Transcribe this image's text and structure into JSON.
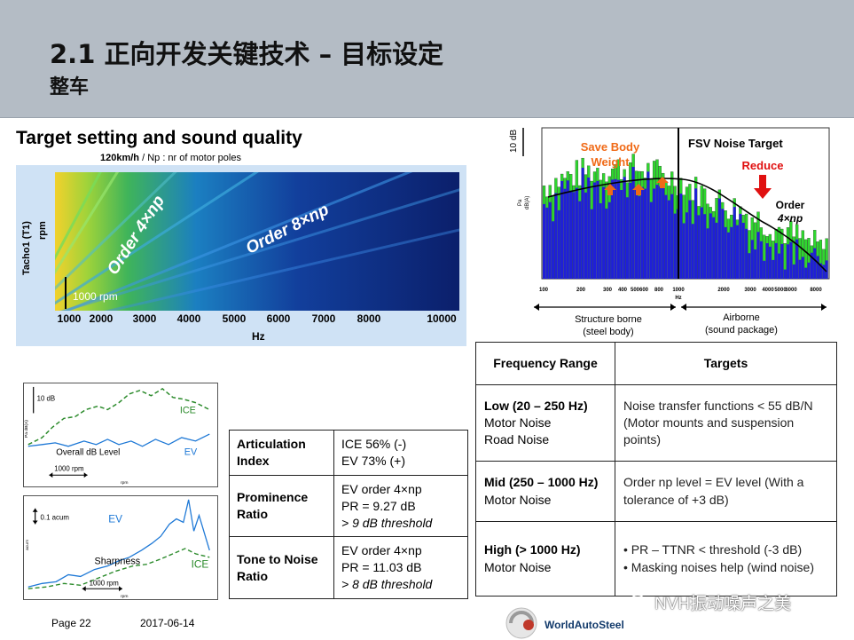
{
  "header": {
    "title": "2.1 正向开发关键技术 – 目标设定",
    "subtitle": "整车"
  },
  "section_title": "Target setting and sound quality",
  "spectrogram": {
    "speed_label": "120km/h",
    "speed_note": " / Np : nr of motor poles",
    "y_label": "Tacho1 (T1)",
    "y_unit": "rpm",
    "x_ticks": [
      "1000",
      "2000",
      "3000",
      "4000",
      "5000",
      "6000",
      "7000",
      "8000",
      "10000"
    ],
    "x_unit": "Hz",
    "order4_label": "Order 4×np",
    "order8_label": "Order 8×np",
    "rpm_label": "1000 rpm"
  },
  "fsv_chart": {
    "scale_label": "10 dB",
    "y_unit_a": "Pa",
    "y_unit_b": "dB(A)",
    "save_label_1": "Save Body",
    "save_label_2": "Weight",
    "target_label": "FSV Noise Target",
    "reduce_label": "Reduce",
    "order_label_1": "Order",
    "order_label_2": "4×np",
    "x_ticks": [
      "100",
      "200",
      "300",
      "400",
      "500",
      "600",
      "800",
      "1000",
      "2000",
      "3000",
      "4000",
      "5000",
      "6000",
      "8000",
      "10000"
    ],
    "x_unit": "Hz",
    "region_left_1": "Structure borne",
    "region_left_2": "(steel body)",
    "region_right_1": "Airborne",
    "region_right_2": "(sound package)",
    "colors": {
      "bar_blue": "#1f1fd8",
      "bar_green": "#2ed82e",
      "save_arrow": "#f06a17",
      "reduce": "#e01010"
    }
  },
  "overall_chart": {
    "scale_label": "10 dB",
    "ice_label": "ICE",
    "ev_label": "EV",
    "caption": "Overall dB Level",
    "rpm_label": "1000 rpm",
    "y_unit": "Pa dB(A)",
    "x_unit": "rpm"
  },
  "sharpness_chart": {
    "scale_label": "0.1 acum",
    "ev_label": "EV",
    "ice_label": "ICE",
    "caption": "Sharpness",
    "rpm_label": "1000 rpm",
    "y_unit": "acum",
    "x_unit": "rpm"
  },
  "metrics": [
    {
      "name": "Articulation Index",
      "l1": "ICE 56% (-)",
      "l2": "EV 73%   (+)",
      "l3": ""
    },
    {
      "name": "Prominence Ratio",
      "l1": "EV order 4×np",
      "l2": "PR = 9.27 dB",
      "l3": "> 9 dB threshold"
    },
    {
      "name": "Tone to Noise Ratio",
      "l1": "EV order 4×np",
      "l2": "PR = 11.03 dB",
      "l3": "> 8 dB threshold"
    }
  ],
  "targets_table": {
    "headers": [
      "Frequency Range",
      "Targets"
    ],
    "rows": [
      {
        "range": "Low (20 – 250 Hz)",
        "src1": "Motor Noise",
        "src2": "Road Noise",
        "target": "Noise transfer functions < 55 dB/N (Motor mounts and suspension points)"
      },
      {
        "range": "Mid (250 – 1000 Hz)",
        "src1": "Motor Noise",
        "src2": "",
        "target": "Order np level =  EV level (With a tolerance of +3 dB)"
      },
      {
        "range": "High (> 1000 Hz)",
        "src1": "Motor Noise",
        "src2": "",
        "target_l1": "• PR – TTNR < threshold (-3 dB)",
        "target_l2": "• Masking noises help (wind noise)"
      }
    ]
  },
  "footer": {
    "page": "Page 22",
    "date": "2017-06-14",
    "logo": "WorldAutoSteel",
    "watermark": "NVH振动噪声之美"
  }
}
